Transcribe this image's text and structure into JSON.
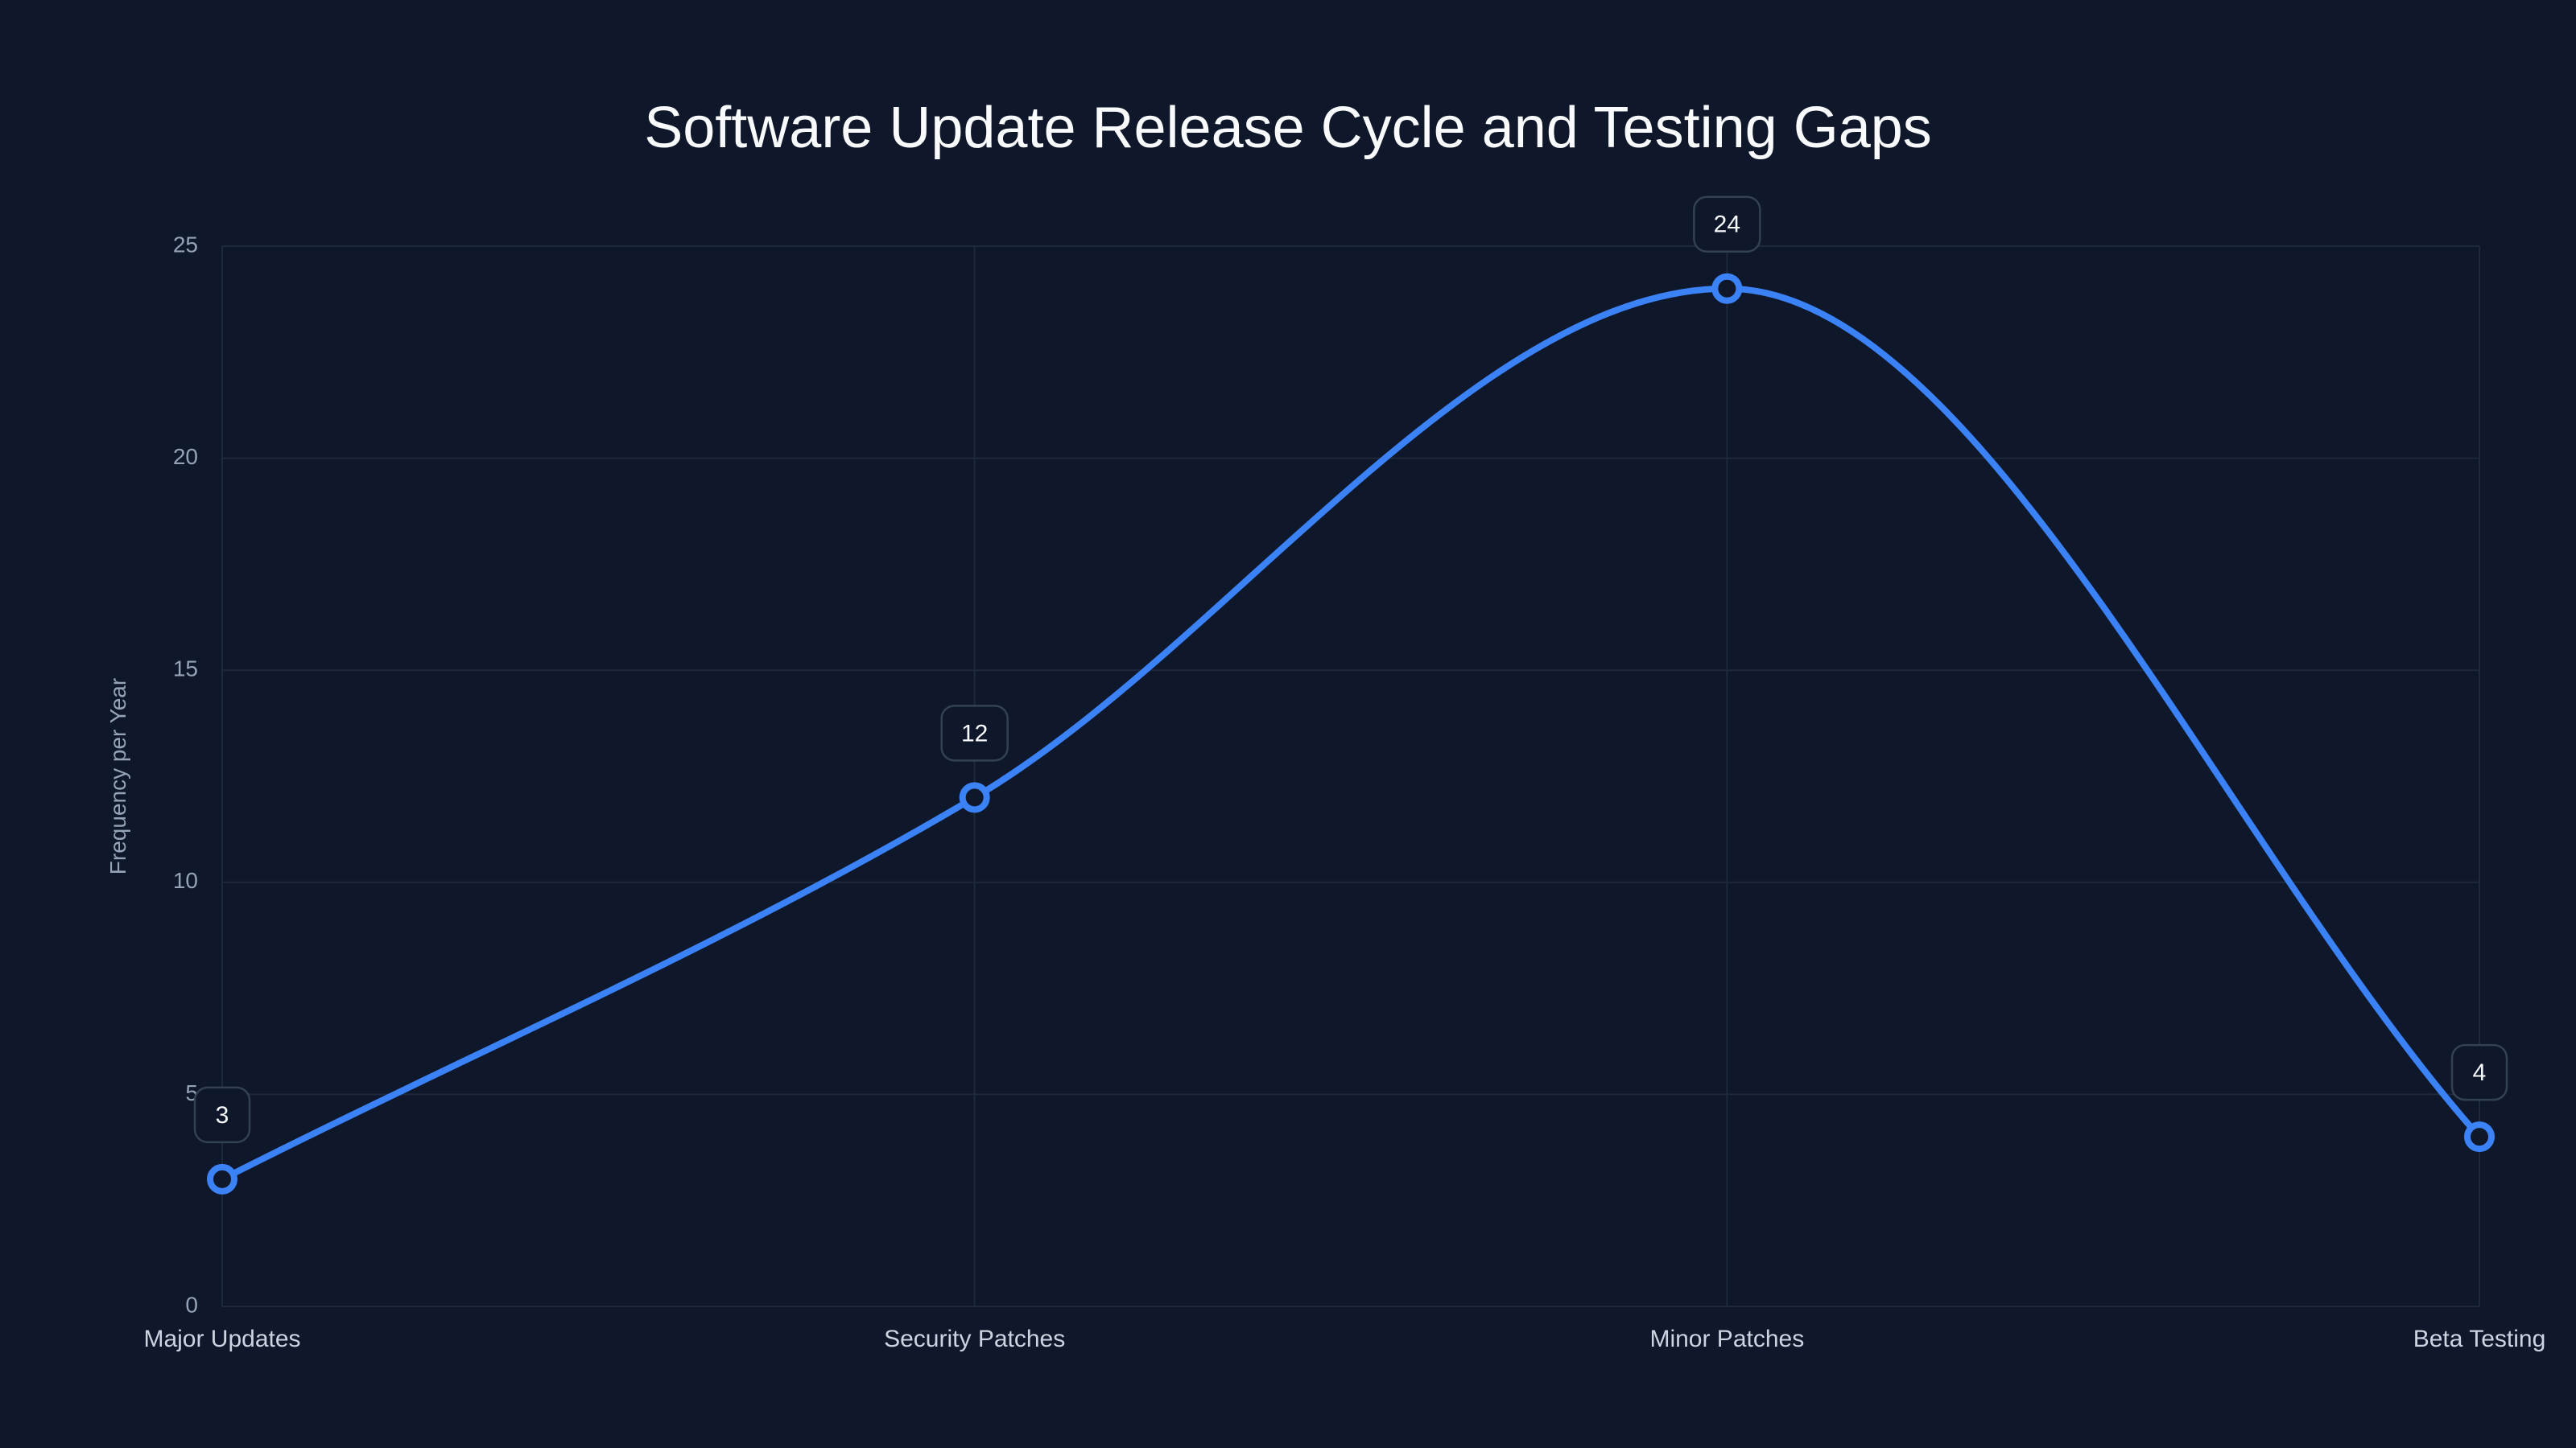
{
  "title": "Software Update Release Cycle and Testing Gaps",
  "colors": {
    "background": "#0f172a",
    "line": "#3b82f6",
    "grid": "#1e293b",
    "label_box_border": "#334155",
    "title": "#f8fafc",
    "tick": "#94a3b8"
  },
  "chart_data": {
    "type": "line",
    "title": "Software Update Release Cycle and Testing Gaps",
    "categories": [
      "Major Updates",
      "Security Patches",
      "Minor Patches",
      "Beta Testing"
    ],
    "series": [
      {
        "name": "Frequency per Year",
        "values": [
          3,
          12,
          24,
          4
        ]
      }
    ],
    "xlabel": "",
    "ylabel": "Frequency per Year",
    "ylim": [
      0,
      25
    ],
    "yticks": [
      0,
      5,
      10,
      15,
      20,
      25
    ],
    "grid": true,
    "smooth": true,
    "markers": "hollow-circle",
    "data_labels": true,
    "legend": "none"
  }
}
